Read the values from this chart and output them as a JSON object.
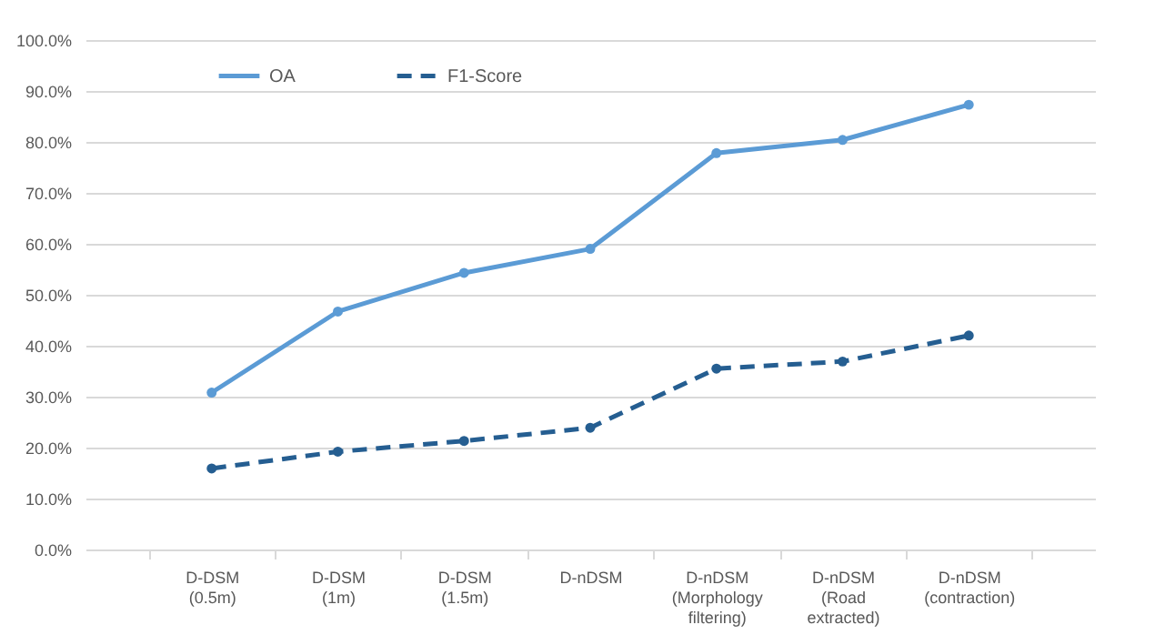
{
  "chart_data": {
    "type": "line",
    "categories": [
      "D-DSM (0.5m)",
      "D-DSM (1m)",
      "D-DSM (1.5m)",
      "D-nDSM",
      "D-nDSM (Morphology filtering)",
      "D-nDSM (Road extracted)",
      "D-nDSM (contraction)"
    ],
    "series": [
      {
        "name": "OA",
        "color": "#5b9bd5",
        "line_style": "solid",
        "values": [
          30.8,
          46.7,
          54.3,
          59.0,
          77.8,
          80.4,
          87.3
        ]
      },
      {
        "name": "F1-Score",
        "color": "#255e91",
        "line_style": "dashed",
        "values": [
          15.9,
          19.2,
          21.3,
          23.9,
          35.5,
          36.9,
          42.0
        ]
      }
    ],
    "ylim": [
      0,
      100
    ],
    "yticks": [
      {
        "value": 0,
        "label": "0.0%"
      },
      {
        "value": 10,
        "label": "10.0%"
      },
      {
        "value": 20,
        "label": "20.0%"
      },
      {
        "value": 30,
        "label": "30.0%"
      },
      {
        "value": 40,
        "label": "40.0%"
      },
      {
        "value": 50,
        "label": "50.0%"
      },
      {
        "value": 60,
        "label": "60.0%"
      },
      {
        "value": 70,
        "label": "70.0%"
      },
      {
        "value": 80,
        "label": "80.0%"
      },
      {
        "value": 90,
        "label": "90.0%"
      },
      {
        "value": 100,
        "label": "100.0%"
      }
    ],
    "grid": "y",
    "legend": "top left",
    "marker": "circle"
  }
}
